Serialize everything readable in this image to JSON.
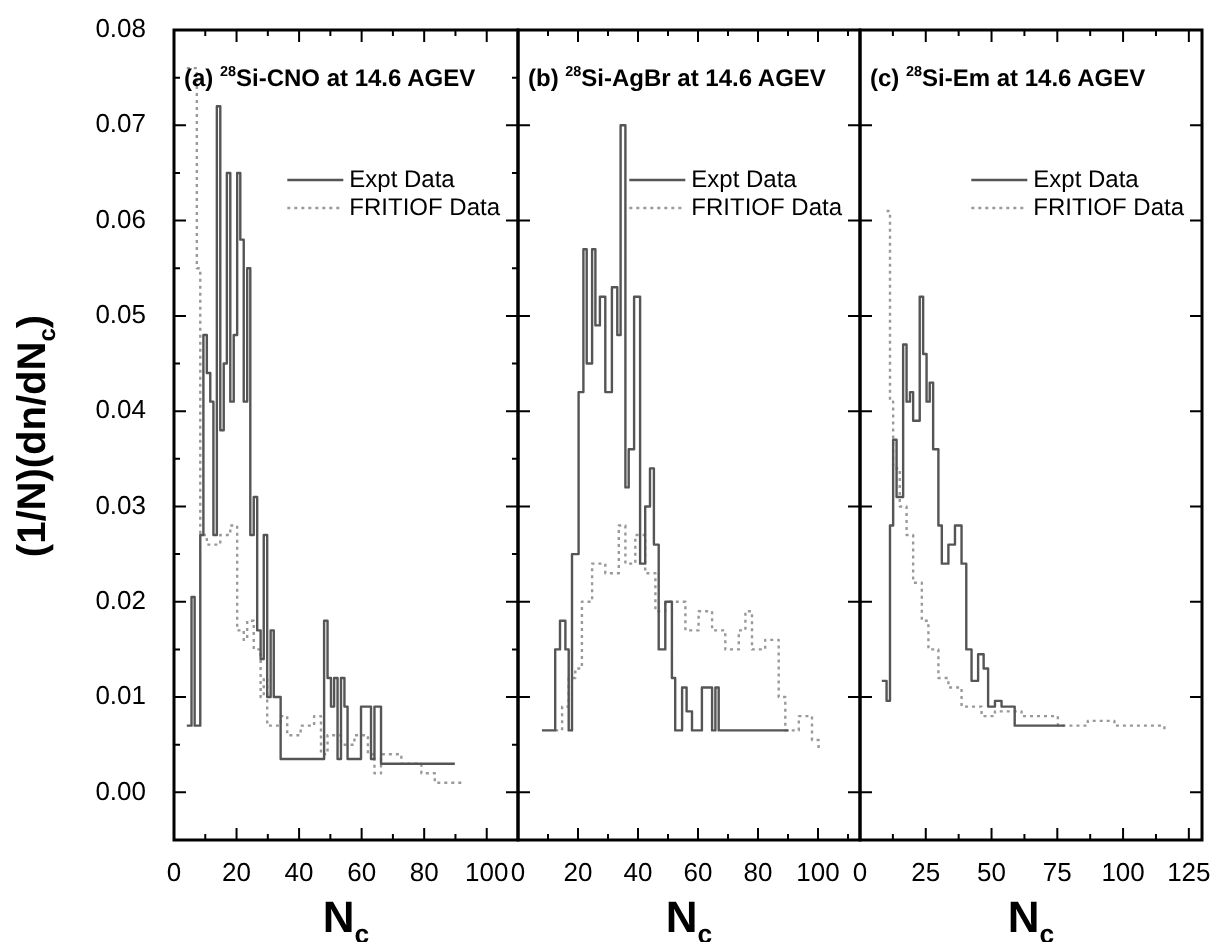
{
  "chart_data": [
    {
      "type": "step",
      "annotations": [
        "(a) $^{28}$Si-CNO at 14.6 AGEV"
      ],
      "xlabel": "N$_{c}$",
      "ylabel": "(1/N)(dn/dN$_{c}$)",
      "xlim": [
        0,
        110
      ],
      "ylim": [
        -0.005,
        0.08
      ],
      "xticks": [
        0,
        {
          "value": 10,
          "label": null
        },
        20,
        {
          "value": 30,
          "label": null
        },
        40,
        {
          "value": 50,
          "label": null
        },
        60,
        {
          "value": 70,
          "label": null
        },
        80,
        {
          "value": 90,
          "label": null
        },
        100
      ],
      "yticks": [
        {
          "value": 0,
          "label": "0.00"
        },
        {
          "value": 0.005,
          "label": null
        },
        {
          "value": 0.01,
          "label": "0.01"
        },
        {
          "value": 0.015,
          "label": null
        },
        {
          "value": 0.02,
          "label": "0.02"
        },
        {
          "value": 0.025,
          "label": null
        },
        {
          "value": 0.03,
          "label": "0.03"
        },
        {
          "value": 0.035,
          "label": null
        },
        {
          "value": 0.04,
          "label": "0.04"
        },
        {
          "value": 0.045,
          "label": null
        },
        {
          "value": 0.05,
          "label": "0.05"
        },
        {
          "value": 0.055,
          "label": null
        },
        {
          "value": 0.06,
          "label": "0.06"
        },
        {
          "value": 0.065,
          "label": null
        },
        {
          "value": 0.07,
          "label": "0.07"
        },
        {
          "value": 0.075,
          "label": null
        },
        {
          "value": 0.08,
          "label": "0.08"
        }
      ],
      "legend": "top right",
      "series": [
        {
          "name": "Expt Data",
          "color": "#555555",
          "line_style": "solid",
          "x": [
            4.1,
            5.6,
            6.6,
            8.4,
            9.4,
            10.5,
            11.6,
            12.6,
            13.7,
            14.8,
            15.9,
            16.9,
            18,
            19.1,
            20.2,
            21.2,
            22.3,
            23.4,
            24.4,
            25.5,
            26.6,
            27.7,
            28.7,
            29.8,
            30.9,
            31.9,
            34.1,
            48,
            49.1,
            50.2,
            51.2,
            52.3,
            53.4,
            54.5,
            55.5,
            59.8,
            63,
            64.1,
            66.2,
            89.8
          ],
          "values": [
            0.007,
            0.0205,
            0.007,
            0.027,
            0.048,
            0.044,
            0.041,
            0.027,
            0.072,
            0.038,
            0.045,
            0.065,
            0.041,
            0.048,
            0.065,
            0.058,
            0.041,
            0.055,
            0.027,
            0.031,
            0.017,
            0.014,
            0.027,
            0.01,
            0.017,
            0.01,
            0.0035,
            0.018,
            0.012,
            0.009,
            0.012,
            0.0035,
            0.012,
            0.009,
            0.0035,
            0.009,
            0.0035,
            0.009,
            0.003,
            0.003
          ]
        },
        {
          "name": "FRITIOF Data",
          "color": "#999999",
          "line_style": "dotted",
          "x": [
            4.1,
            7.3,
            8.4,
            10.5,
            14.8,
            18,
            20.2,
            22.3,
            23.4,
            25.5,
            27.7,
            28.7,
            29.8,
            34.1,
            36.2,
            40.5,
            44.8,
            47,
            49.1,
            53.4,
            57.7,
            62,
            64.1,
            66.2,
            72.7,
            79.1,
            83.4,
            92
          ],
          "values": [
            0.076,
            0.055,
            0.027,
            0.026,
            0.027,
            0.028,
            0.017,
            0.016,
            0.018,
            0.015,
            0.01,
            0.012,
            0.007,
            0.008,
            0.006,
            0.007,
            0.008,
            0.004,
            0.006,
            0.005,
            0.006,
            0.004,
            0.002,
            0.004,
            0.003,
            0.002,
            0.001,
            0.001
          ]
        }
      ]
    },
    {
      "type": "step",
      "annotations": [
        "(b) $^{28}$Si-AgBr at 14.6 AGEV"
      ],
      "xlabel": "N$_{c}$",
      "xlim": [
        0,
        114
      ],
      "ylim": [
        -0.005,
        0.08
      ],
      "tick_labels": "x",
      "xticks": [
        0,
        {
          "value": 10,
          "label": null
        },
        20,
        {
          "value": 30,
          "label": null
        },
        40,
        {
          "value": 50,
          "label": null
        },
        60,
        {
          "value": 70,
          "label": null
        },
        80,
        {
          "value": 90,
          "label": null
        },
        100,
        {
          "value": 110,
          "label": null
        }
      ],
      "yticks": [
        0,
        0.01,
        0.02,
        0.03,
        0.04,
        0.05,
        0.06,
        0.07,
        0.08
      ],
      "legend": "top right",
      "series": [
        {
          "name": "Expt Data",
          "color": "#555555",
          "line_style": "solid",
          "x": [
            8,
            12.4,
            14,
            15.8,
            16.9,
            18,
            20.2,
            21.8,
            22.9,
            24.7,
            25.8,
            27.3,
            29.1,
            31.3,
            33.1,
            34.2,
            35.8,
            36.9,
            38.7,
            40.7,
            42.4,
            44,
            45.3,
            46.9,
            49.1,
            51.3,
            52.4,
            54.7,
            56.2,
            58,
            61.3,
            64.7,
            65.8,
            66.9,
            90.2
          ],
          "values": [
            0.0065,
            0.015,
            0.018,
            0.015,
            0.0065,
            0.025,
            0.042,
            0.057,
            0.045,
            0.057,
            0.049,
            0.052,
            0.042,
            0.053,
            0.048,
            0.07,
            0.032,
            0.036,
            0.052,
            0.024,
            0.03,
            0.034,
            0.026,
            0.015,
            0.02,
            0.012,
            0.0065,
            0.011,
            0.0085,
            0.0065,
            0.011,
            0.0065,
            0.011,
            0.0065,
            0.0065
          ]
        },
        {
          "name": "FRITIOF Data",
          "color": "#999999",
          "line_style": "dotted",
          "x": [
            12.4,
            14.7,
            16.9,
            19.1,
            21.3,
            24.7,
            29.1,
            33.6,
            35.8,
            39.1,
            42.4,
            45.8,
            49.1,
            55.8,
            60.2,
            64.7,
            69.1,
            73.6,
            75.8,
            78,
            82.4,
            86.9,
            89.1,
            93.6,
            98,
            100.2
          ],
          "values": [
            0.0065,
            0.009,
            0.012,
            0.013,
            0.02,
            0.024,
            0.023,
            0.028,
            0.024,
            0.027,
            0.023,
            0.019,
            0.02,
            0.017,
            0.019,
            0.017,
            0.015,
            0.017,
            0.019,
            0.015,
            0.016,
            0.01,
            0.0065,
            0.008,
            0.0055,
            0.0045
          ]
        }
      ]
    },
    {
      "type": "step",
      "annotations": [
        "(c) $^{28}$Si-Em at 14.6 AGEV"
      ],
      "xlabel": "N$_{c}$",
      "xlim": [
        0,
        130
      ],
      "ylim": [
        -0.005,
        0.08
      ],
      "tick_labels": "x",
      "xticks": [
        0,
        {
          "value": 12.5,
          "label": null
        },
        25,
        {
          "value": 37.5,
          "label": null
        },
        50,
        {
          "value": 62.5,
          "label": null
        },
        75,
        {
          "value": 87.5,
          "label": null
        },
        100,
        {
          "value": 112.5,
          "label": null
        },
        125
      ],
      "yticks": [
        0,
        0.01,
        0.02,
        0.03,
        0.04,
        0.05,
        0.06,
        0.07,
        0.08
      ],
      "legend": "top right",
      "series": [
        {
          "name": "Expt Data",
          "color": "#555555",
          "line_style": "solid",
          "x": [
            8.3,
            10.1,
            11.4,
            12.6,
            13.9,
            16.4,
            17.7,
            19,
            20.2,
            22.7,
            24,
            25.3,
            26.5,
            27.8,
            29.8,
            31.1,
            33.6,
            36.1,
            38.6,
            40.4,
            42.4,
            44.9,
            47,
            48.7,
            51.3,
            53.8,
            58.8,
            77.8
          ],
          "values": [
            0.0117,
            0.0096,
            0.028,
            0.037,
            0.031,
            0.047,
            0.041,
            0.042,
            0.039,
            0.052,
            0.046,
            0.041,
            0.043,
            0.036,
            0.028,
            0.024,
            0.026,
            0.028,
            0.024,
            0.015,
            0.0117,
            0.0145,
            0.013,
            0.009,
            0.0096,
            0.009,
            0.007,
            0.007
          ]
        },
        {
          "name": "FRITIOF Data",
          "color": "#999999",
          "line_style": "dotted",
          "x": [
            10.1,
            11.4,
            12.6,
            15.1,
            17.7,
            20.2,
            23.5,
            26,
            29.8,
            33.6,
            38.6,
            46.2,
            51.3,
            61.4,
            75.2,
            86.6,
            96.7,
            115.7
          ],
          "values": [
            0.061,
            0.041,
            0.034,
            0.03,
            0.027,
            0.022,
            0.018,
            0.015,
            0.012,
            0.011,
            0.009,
            0.008,
            0.0085,
            0.008,
            0.007,
            0.0075,
            0.007,
            0.0065
          ]
        }
      ]
    }
  ]
}
